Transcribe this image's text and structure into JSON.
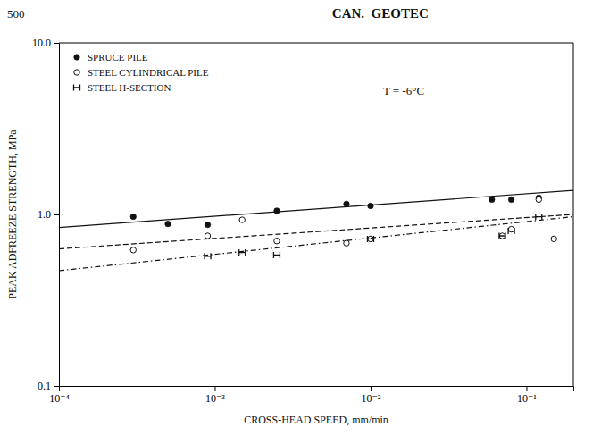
{
  "chart_data": {
    "type": "scatter",
    "title": "CAN.  GEOTEC",
    "subtitle": "500",
    "xlabel": "CROSS-HEAD SPEED, mm/min",
    "ylabel": "PEAK ADFREEZE STRENGTH, MPa",
    "annotations": [
      "T = -6°C"
    ],
    "log": true,
    "grid": false,
    "legend": "upper-left",
    "xlim": [
      0.0001,
      0.2
    ],
    "ylim": [
      0.1,
      10.0
    ],
    "xticks": [
      {
        "value": 0.0001,
        "label": "10⁻⁴"
      },
      {
        "value": 0.001,
        "label": "10⁻³"
      },
      {
        "value": 0.01,
        "label": "10⁻²"
      },
      {
        "value": 0.1,
        "label": "10⁻¹"
      }
    ],
    "yticks": [
      0.1,
      {
        "value": 1.0,
        "label": "1.0"
      },
      {
        "value": 10.0,
        "label": "10.0"
      }
    ],
    "series": [
      {
        "type": "line",
        "line_style": "solid",
        "color": "#111111",
        "x": [
          0.0001,
          0.2
        ],
        "values": [
          0.84,
          1.38
        ]
      },
      {
        "type": "scatter",
        "name": "SPRUCE PILE",
        "marker": "circle",
        "color": "#111111",
        "x": [
          0.0003,
          0.0005,
          0.0009,
          0.0025,
          0.007,
          0.01,
          0.06,
          0.08,
          0.12
        ],
        "values": [
          0.97,
          0.88,
          0.87,
          1.05,
          1.15,
          1.12,
          1.22,
          1.22,
          1.25
        ]
      },
      {
        "type": "line",
        "line_style": "dashed",
        "color": "#111111",
        "x": [
          0.0001,
          0.2
        ],
        "values": [
          0.63,
          1.0
        ]
      },
      {
        "type": "scatter",
        "name": "STEEL CYLINDRICAL PILE",
        "marker": "circle-open",
        "color": "#111111",
        "x": [
          0.0003,
          0.0009,
          0.0015,
          0.0025,
          0.007,
          0.01,
          0.07,
          0.08,
          0.12,
          0.15
        ],
        "values": [
          0.62,
          0.75,
          0.93,
          0.7,
          0.68,
          0.72,
          0.75,
          0.82,
          1.22,
          0.72
        ]
      },
      {
        "type": "line",
        "line_style": "dashdot",
        "color": "#111111",
        "x": [
          0.0001,
          0.2
        ],
        "values": [
          0.47,
          0.97
        ]
      },
      {
        "type": "scatter",
        "name": "STEEL H-SECTION",
        "marker": "H",
        "color": "#111111",
        "x": [
          0.0009,
          0.0015,
          0.0025,
          0.01,
          0.07,
          0.08,
          0.12
        ],
        "values": [
          0.57,
          0.6,
          0.58,
          0.72,
          0.75,
          0.8,
          0.97
        ]
      }
    ]
  }
}
